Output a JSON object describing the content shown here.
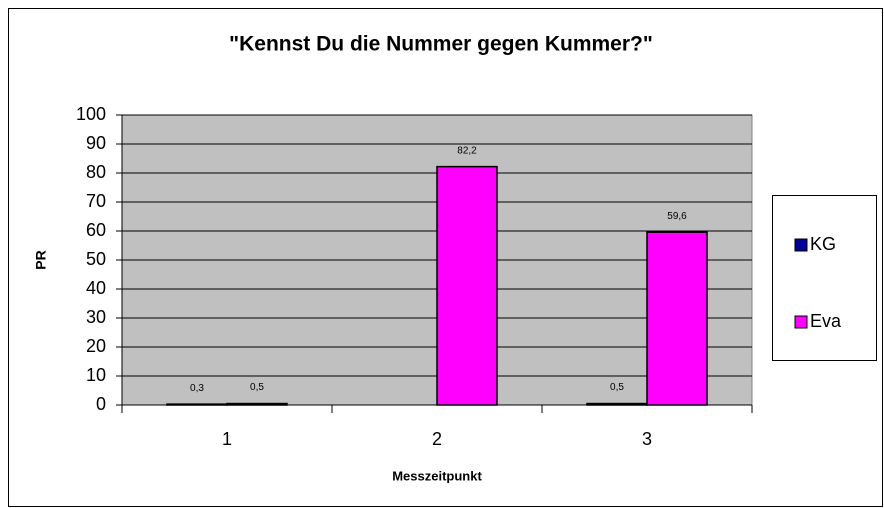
{
  "chart_data": {
    "type": "bar",
    "title": "\"Kennst Du die Nummer gegen Kummer?\"",
    "xlabel": "Messzeitpunkt",
    "ylabel": "PR",
    "categories": [
      "1",
      "2",
      "3"
    ],
    "series": [
      {
        "name": "KG",
        "color": "#000099",
        "values": [
          0.3,
          null,
          0.5
        ],
        "value_labels": [
          "0,3",
          null,
          "0,5"
        ]
      },
      {
        "name": "Eva",
        "color": "#ff00ff",
        "values": [
          0.5,
          82.2,
          59.6
        ],
        "value_labels": [
          "0,5",
          "82,2",
          "59,6"
        ]
      }
    ],
    "ylim": [
      0,
      100
    ],
    "yticks": [
      0,
      10,
      20,
      30,
      40,
      50,
      60,
      70,
      80,
      90,
      100
    ],
    "grid": true,
    "legend": "right"
  }
}
